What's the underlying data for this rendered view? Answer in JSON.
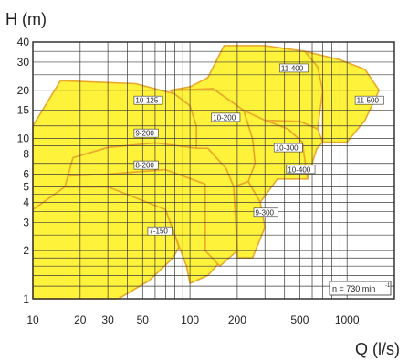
{
  "chart_data": {
    "type": "area",
    "title": "",
    "ylabel": "H (m)",
    "xlabel": "Q (l/s)",
    "x_scale": "log",
    "y_scale": "log",
    "xlim": [
      10,
      2000
    ],
    "ylim": [
      1,
      40
    ],
    "grid": true,
    "x_ticks": [
      10,
      20,
      30,
      50,
      100,
      200,
      500,
      1000
    ],
    "x_tick_labels": [
      "10",
      "20",
      "30",
      "50",
      "100",
      "200",
      "500",
      "1000"
    ],
    "y_ticks": [
      1,
      2,
      3,
      4,
      5,
      6,
      8,
      10,
      15,
      20,
      30,
      40
    ],
    "y_tick_labels": [
      "1",
      "2",
      "3",
      "4",
      "5",
      "6",
      "8",
      "10",
      "15",
      "20",
      "30",
      "40"
    ],
    "fill_color": "#fff23a",
    "edge_color": "#e9a82a",
    "note": "n = 730 min",
    "note_sup": "-1",
    "series": [
      {
        "name": "7-150",
        "label_at": [
          55,
          2.6
        ],
        "points": [
          [
            10,
            3.6
          ],
          [
            16,
            5.0
          ],
          [
            30,
            5.0
          ],
          [
            55,
            4.6
          ],
          [
            70,
            3.6
          ],
          [
            85,
            2.1
          ],
          [
            78,
            1.8
          ],
          [
            55,
            1.3
          ],
          [
            35,
            1.0
          ],
          [
            10,
            1.0
          ]
        ]
      },
      {
        "name": "8-200",
        "label_at": [
          45,
          6.7
        ],
        "points": [
          [
            14,
            5.8
          ],
          [
            30,
            6.0
          ],
          [
            70,
            6.4
          ],
          [
            125,
            5.2
          ],
          [
            170,
            3.2
          ],
          [
            180,
            2.0
          ],
          [
            130,
            1.4
          ],
          [
            100,
            1.25
          ],
          [
            95,
            1.6
          ],
          [
            70,
            3.6
          ],
          [
            30,
            5.0
          ],
          [
            16,
            5.0
          ]
        ]
      },
      {
        "name": "9-200",
        "label_at": [
          45,
          10.6
        ],
        "points": [
          [
            18,
            7.6
          ],
          [
            30,
            8.8
          ],
          [
            60,
            9.4
          ],
          [
            130,
            8.7
          ],
          [
            170,
            6.5
          ],
          [
            190,
            5.0
          ],
          [
            200,
            2.0
          ],
          [
            155,
            1.6
          ],
          [
            125,
            2.0
          ],
          [
            125,
            5.2
          ],
          [
            70,
            6.4
          ],
          [
            30,
            6.0
          ],
          [
            14,
            5.8
          ]
        ]
      },
      {
        "name": "9-300",
        "label_at": [
          260,
          3.4
        ],
        "points": [
          [
            190,
            5.0
          ],
          [
            235,
            5.4
          ],
          [
            280,
            4.0
          ],
          [
            300,
            2.8
          ],
          [
            250,
            1.8
          ],
          [
            200,
            1.8
          ],
          [
            200,
            2.0
          ]
        ]
      },
      {
        "name": "10-125",
        "label_at": [
          45,
          17
        ],
        "points": [
          [
            10,
            12.0
          ],
          [
            15,
            23.0
          ],
          [
            45,
            22.0
          ],
          [
            80,
            19.0
          ],
          [
            100,
            16.0
          ],
          [
            110,
            12.0
          ],
          [
            110,
            8.7
          ],
          [
            60,
            9.4
          ],
          [
            30,
            8.8
          ],
          [
            18,
            7.6
          ],
          [
            16,
            5.0
          ],
          [
            10,
            3.6
          ]
        ]
      },
      {
        "name": "10-200",
        "label_at": [
          140,
          13.3
        ],
        "points": [
          [
            75,
            20.0
          ],
          [
            140,
            20.5
          ],
          [
            220,
            15.0
          ],
          [
            250,
            10.0
          ],
          [
            260,
            7.0
          ],
          [
            235,
            5.4
          ],
          [
            190,
            5.0
          ],
          [
            170,
            6.5
          ],
          [
            130,
            8.7
          ],
          [
            110,
            8.7
          ],
          [
            110,
            12.0
          ],
          [
            100,
            16.0
          ],
          [
            80,
            19.0
          ]
        ]
      },
      {
        "name": "10-300",
        "label_at": [
          350,
          8.6
        ],
        "points": [
          [
            220,
            15.0
          ],
          [
            300,
            13.0
          ],
          [
            420,
            11.5
          ],
          [
            520,
            9.5
          ],
          [
            560,
            5.6
          ],
          [
            470,
            5.6
          ],
          [
            360,
            5.6
          ],
          [
            280,
            4.0
          ],
          [
            235,
            5.4
          ],
          [
            260,
            7.0
          ],
          [
            250,
            10.0
          ]
        ]
      },
      {
        "name": "10-400",
        "label_at": [
          420,
          6.3
        ],
        "points": [
          [
            300,
            13.0
          ],
          [
            500,
            12.8
          ],
          [
            650,
            11.5
          ],
          [
            700,
            9.5
          ],
          [
            640,
            8.6
          ],
          [
            560,
            5.6
          ],
          [
            520,
            9.5
          ],
          [
            420,
            11.5
          ]
        ]
      },
      {
        "name": "11-400",
        "label_at": [
          380,
          27
        ],
        "points": [
          [
            100,
            21.0
          ],
          [
            130,
            24.0
          ],
          [
            165,
            38.0
          ],
          [
            300,
            38.0
          ],
          [
            540,
            35.0
          ],
          [
            650,
            28.0
          ],
          [
            700,
            20.0
          ],
          [
            650,
            11.5
          ],
          [
            500,
            12.8
          ],
          [
            300,
            13.0
          ],
          [
            220,
            15.0
          ],
          [
            140,
            20.5
          ],
          [
            75,
            20.0
          ]
        ]
      },
      {
        "name": "11-500",
        "label_at": [
          1150,
          17
        ],
        "points": [
          [
            540,
            35.0
          ],
          [
            900,
            31.0
          ],
          [
            1300,
            27.0
          ],
          [
            1600,
            20.0
          ],
          [
            1300,
            13.0
          ],
          [
            1000,
            9.5
          ],
          [
            700,
            9.5
          ],
          [
            700,
            20.0
          ],
          [
            650,
            28.0
          ]
        ]
      }
    ]
  }
}
